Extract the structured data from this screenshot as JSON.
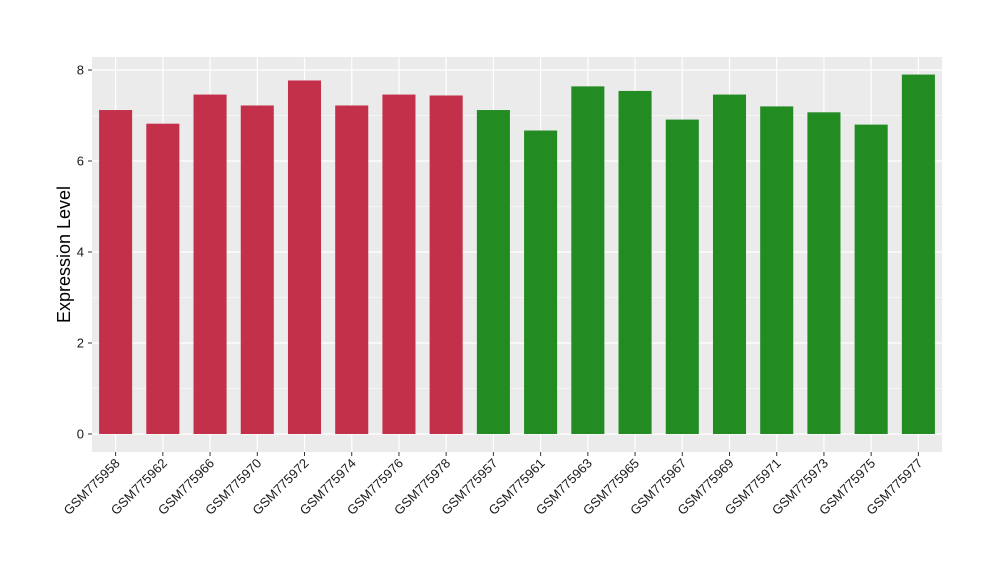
{
  "chart_data": {
    "type": "bar",
    "title": "",
    "xlabel": "",
    "ylabel": "Expression Level",
    "ylim": [
      0,
      8.0
    ],
    "yticks": [
      0,
      2,
      4,
      6,
      8
    ],
    "grid": true,
    "legend": "none",
    "background_color": "#ebebeb",
    "grid_color": "#ffffff",
    "categories": [
      "GSM775958",
      "GSM775962",
      "GSM775966",
      "GSM775970",
      "GSM775972",
      "GSM775974",
      "GSM775976",
      "GSM775978",
      "GSM775957",
      "GSM775961",
      "GSM775963",
      "GSM775965",
      "GSM775967",
      "GSM775969",
      "GSM775971",
      "GSM775973",
      "GSM775975",
      "GSM775977"
    ],
    "values": [
      7.12,
      6.82,
      7.46,
      7.22,
      7.77,
      7.22,
      7.46,
      7.44,
      7.12,
      6.67,
      7.64,
      7.54,
      6.91,
      7.46,
      7.2,
      7.07,
      6.8,
      7.9
    ],
    "colors": [
      "#c3304a",
      "#c3304a",
      "#c3304a",
      "#c3304a",
      "#c3304a",
      "#c3304a",
      "#c3304a",
      "#c3304a",
      "#228b22",
      "#228b22",
      "#228b22",
      "#228b22",
      "#228b22",
      "#228b22",
      "#228b22",
      "#228b22",
      "#228b22",
      "#228b22"
    ]
  }
}
